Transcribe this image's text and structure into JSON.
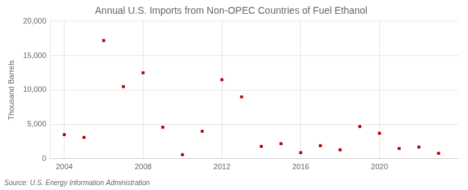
{
  "chart_data": {
    "type": "scatter",
    "title": "Annual U.S. Imports from Non-OPEC Countries of Fuel Ethanol",
    "ylabel": "Thousand Barrels",
    "source": "Source: U.S. Energy Information Administration",
    "x": [
      2004,
      2005,
      2006,
      2007,
      2008,
      2009,
      2010,
      2011,
      2012,
      2013,
      2014,
      2015,
      2016,
      2017,
      2018,
      2019,
      2020,
      2021,
      2022,
      2023
    ],
    "values": [
      3500,
      3100,
      17200,
      10500,
      12500,
      4600,
      600,
      4000,
      11500,
      9000,
      1800,
      2200,
      900,
      1900,
      1300,
      4700,
      3700,
      1500,
      1700,
      800
    ],
    "color": "#bb0000",
    "marker": "square",
    "xlim": [
      2003.3,
      2024.0
    ],
    "xticks": [
      2004,
      2008,
      2012,
      2016,
      2020
    ],
    "ylim": [
      0,
      20000
    ],
    "yticks": [
      0,
      {
        "value": 5000,
        "label": "5,000"
      },
      {
        "value": 10000,
        "label": "10,000"
      },
      {
        "value": 15000,
        "label": "15,000"
      },
      {
        "value": 20000,
        "label": "20,000"
      }
    ],
    "grid": true
  }
}
